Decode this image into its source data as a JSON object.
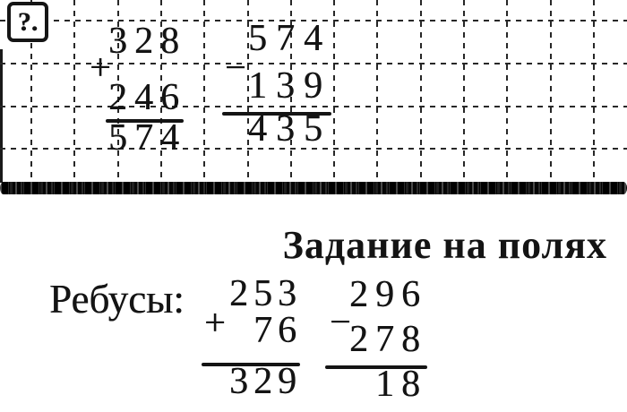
{
  "colors": {
    "ink": "#141414",
    "paper": "#ffffff",
    "grid": "#272727"
  },
  "question_box": {
    "label": "?."
  },
  "grid_problems": [
    {
      "a": "328",
      "op": "+",
      "b": "246",
      "result": "574"
    },
    {
      "a": "574",
      "op": "−",
      "b": "139",
      "result": "435"
    }
  ],
  "margin_section": {
    "heading": "Задание на полях",
    "label": "Ребусы:",
    "problems": [
      {
        "a": "253",
        "op": "+",
        "b": "76",
        "result": "329"
      },
      {
        "a": "296",
        "op": "−",
        "b": "278",
        "result": "18"
      }
    ]
  }
}
